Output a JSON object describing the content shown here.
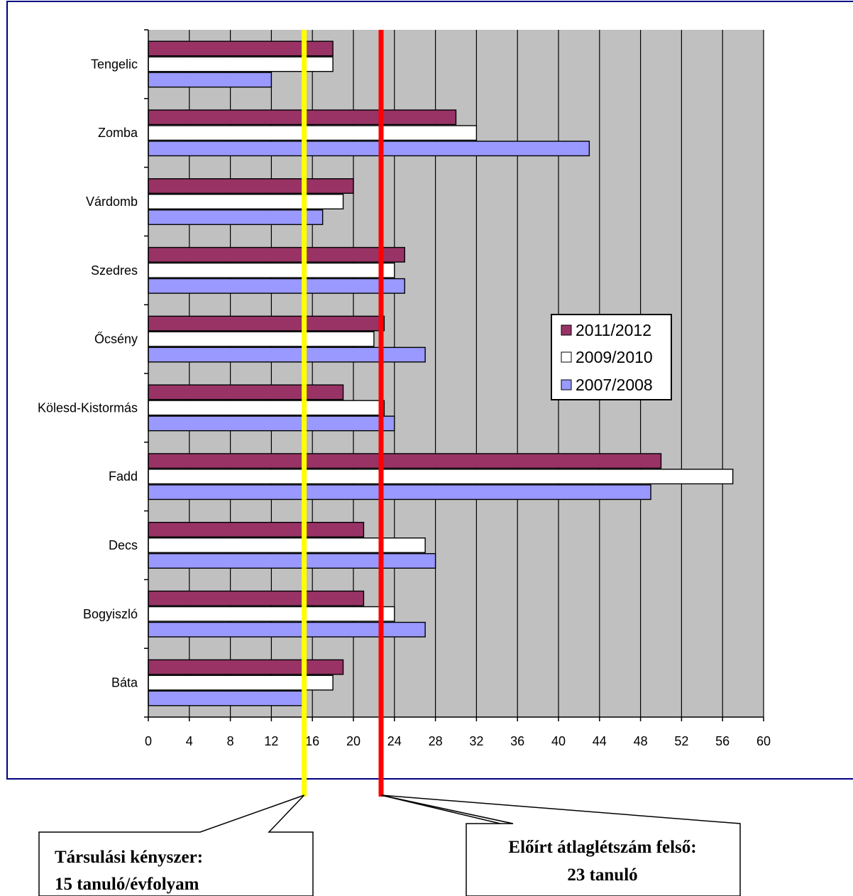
{
  "chart_data": {
    "type": "bar",
    "orientation": "horizontal",
    "categories": [
      "Tengelic",
      "Zomba",
      "Várdomb",
      "Szedres",
      "Őcsény",
      "Kölesd-Kistormás",
      "Fadd",
      "Decs",
      "Bogyiszló",
      "Báta"
    ],
    "series": [
      {
        "name": "2011/2012",
        "color": "#993366",
        "values": [
          18,
          30,
          20,
          25,
          23,
          19,
          50,
          21,
          21,
          19
        ]
      },
      {
        "name": "2009/2010",
        "color": "#ffffff",
        "values": [
          18,
          32,
          19,
          24,
          22,
          23,
          57,
          27,
          24,
          18
        ]
      },
      {
        "name": "2007/2008",
        "color": "#9999ff",
        "values": [
          12,
          43,
          17,
          25,
          27,
          24,
          49,
          28,
          27,
          15
        ]
      }
    ],
    "xlim": [
      0,
      60
    ],
    "xticks": [
      0,
      4,
      8,
      12,
      16,
      20,
      24,
      28,
      32,
      36,
      40,
      44,
      48,
      52,
      56,
      60
    ],
    "grid": true,
    "plot_background": "#c0c0c0",
    "legend_position": "right",
    "reference_lines": [
      {
        "value": 15.2,
        "color": "#ffff00",
        "label_lines": [
          "Társulási kényszer:",
          "15 tanuló/évfolyam"
        ]
      },
      {
        "value": 22.7,
        "color": "#ff0000",
        "label_lines": [
          "Előírt átlaglétszám felső:",
          "23 tanuló"
        ]
      }
    ]
  }
}
